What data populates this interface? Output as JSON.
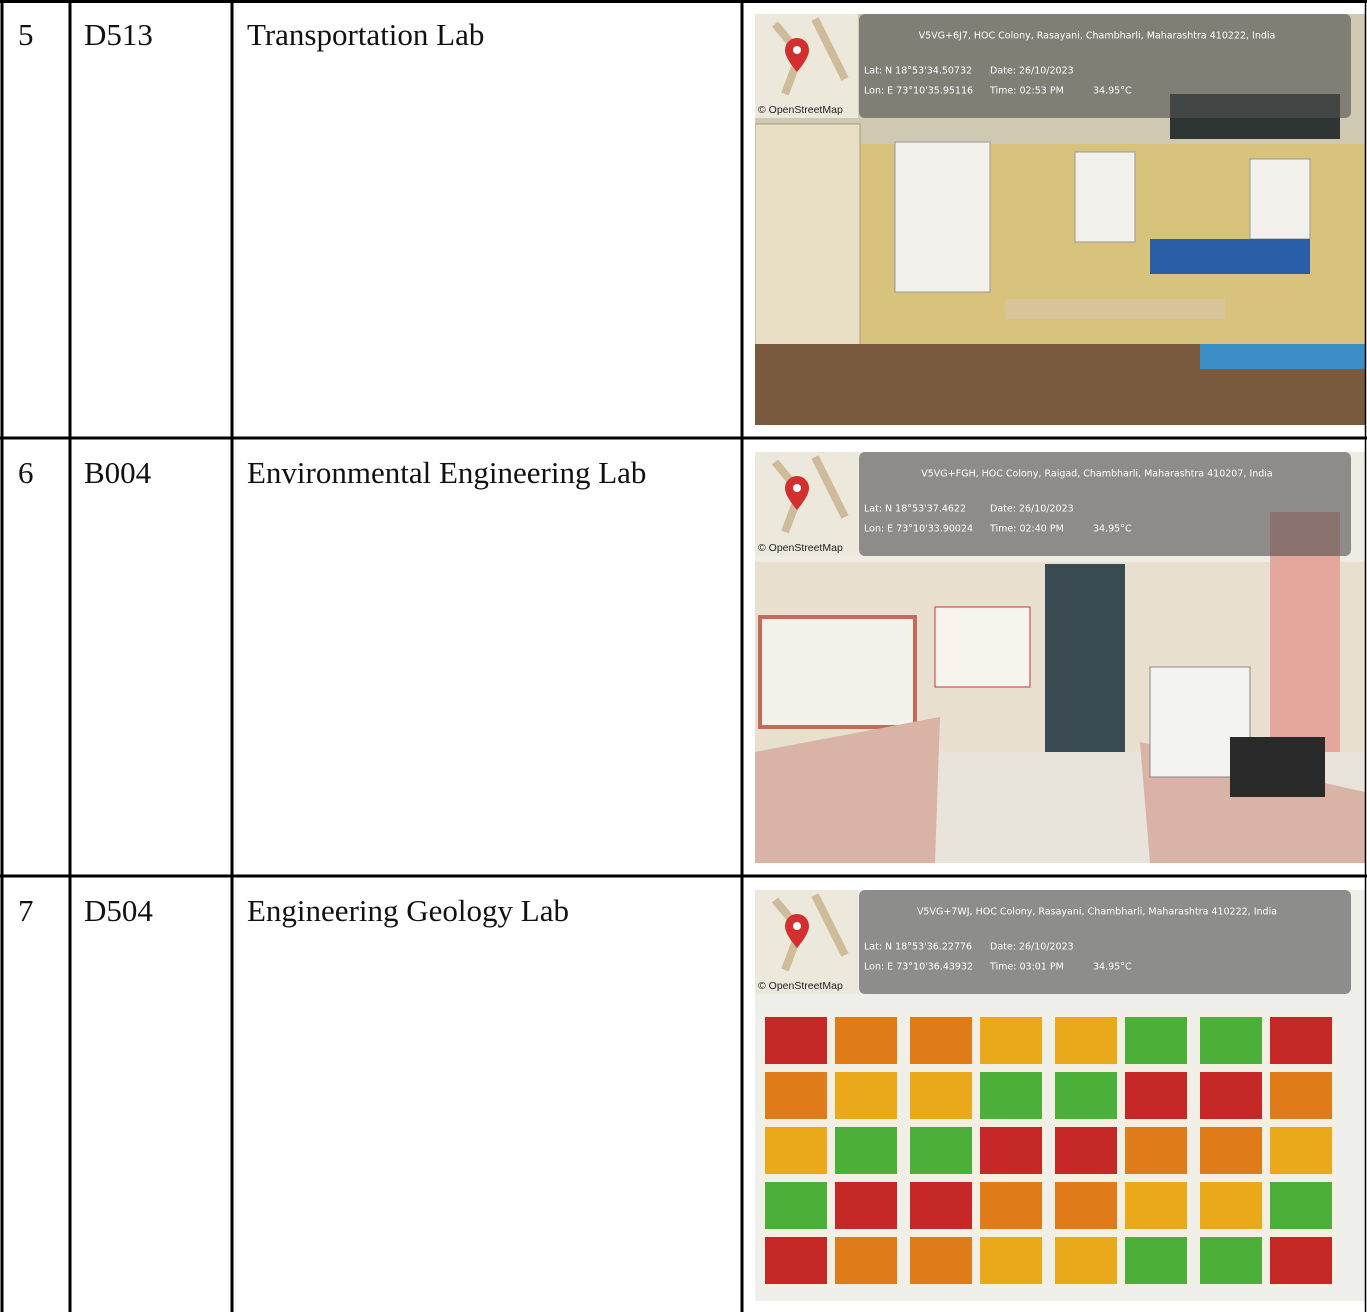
{
  "table": {
    "rows": [
      {
        "number": "5",
        "code": "D513",
        "name": "Transportation Lab",
        "photo": {
          "address": "V5VG+6J7, HOC Colony, Rasayani, Chambharli, Maharashtra 410222, India",
          "lat": "Lat: N 18°53'34.50732",
          "lon": "Lon: E 73°10'35.95116",
          "date": "Date: 26/10/2023",
          "time": "Time: 02:53 PM",
          "temperature": "34.95°C",
          "map_credit": "© OpenStreetMap"
        }
      },
      {
        "number": "6",
        "code": "B004",
        "name": "Environmental Engineering Lab",
        "photo": {
          "address": "V5VG+FGH, HOC Colony, Raigad, Chambharli, Maharashtra 410207, India",
          "lat": "Lat: N 18°53'37.4622",
          "lon": "Lon: E 73°10'33.90024",
          "date": "Date: 26/10/2023",
          "time": "Time: 02:40 PM",
          "temperature": "34.95°C",
          "map_credit": "© OpenStreetMap"
        }
      },
      {
        "number": "7",
        "code": "D504",
        "name": "Engineering Geology Lab",
        "photo": {
          "address": "V5VG+7WJ, HOC Colony, Rasayani, Chambharli, Maharashtra 410222, India",
          "lat": "Lat: N 18°53'36.22776",
          "lon": "Lon: E 73°10'36.43932",
          "date": "Date: 26/10/2023",
          "time": "Time: 03:01 PM",
          "temperature": "34.95°C",
          "map_credit": "© OpenStreetMap"
        }
      }
    ]
  }
}
